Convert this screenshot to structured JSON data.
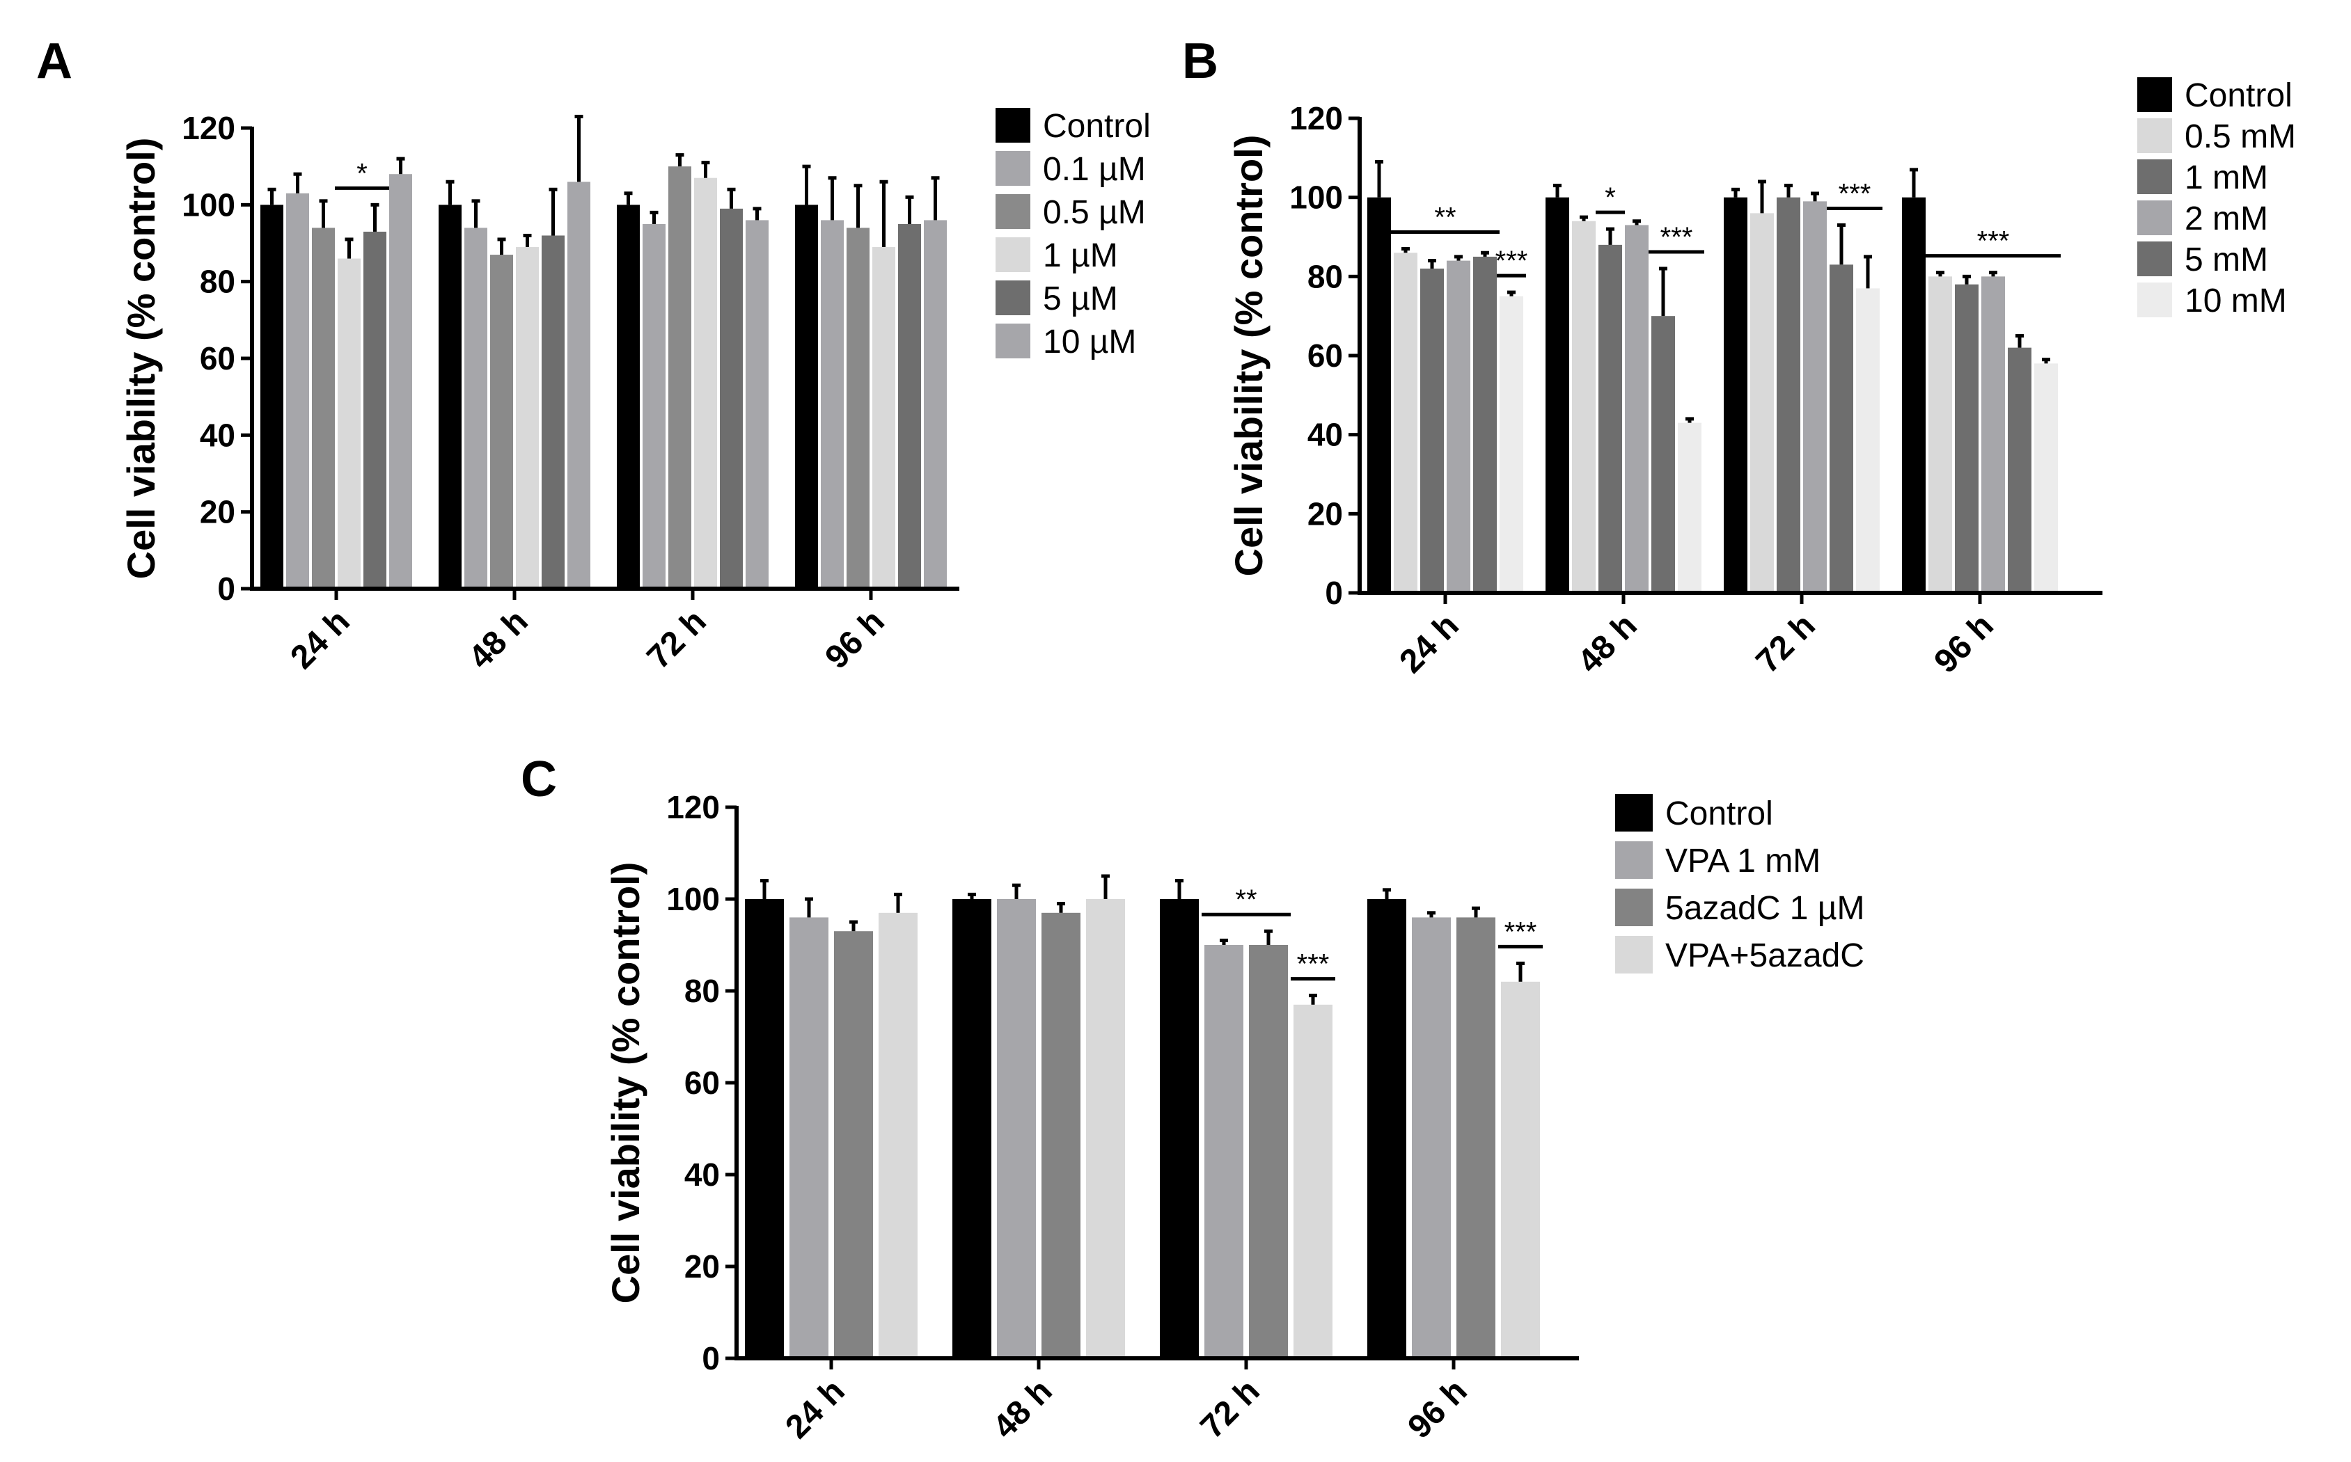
{
  "chart_data": [
    {
      "panel": "A",
      "type": "bar",
      "title": "",
      "xlabel": "",
      "ylabel": "Cell viability (% control)",
      "ylim": [
        0,
        120
      ],
      "yticks": [
        "0",
        "20",
        "40",
        "60",
        "80",
        "100",
        "120"
      ],
      "categories": [
        "24 h",
        "48 h",
        "72 h",
        "96 h"
      ],
      "legend_position": "right",
      "series": [
        {
          "name": "Control",
          "color": "#000000",
          "values": [
            100,
            100,
            100,
            100
          ],
          "errors": [
            4,
            6,
            3,
            10
          ]
        },
        {
          "name": "0.1 µM",
          "color": "#a6a6aa",
          "values": [
            103,
            94,
            95,
            96
          ],
          "errors": [
            5,
            7,
            3,
            11
          ]
        },
        {
          "name": "0.5 µM",
          "color": "#8a8a8a",
          "values": [
            94,
            87,
            110,
            94
          ],
          "errors": [
            7,
            4,
            3,
            11
          ]
        },
        {
          "name": "1 µM",
          "color": "#d9d9d9",
          "values": [
            86,
            89,
            107,
            89
          ],
          "errors": [
            5,
            3,
            4,
            17
          ]
        },
        {
          "name": "5 µM",
          "color": "#6e6e6e",
          "values": [
            93,
            92,
            99,
            95
          ],
          "errors": [
            7,
            12,
            5,
            7
          ]
        },
        {
          "name": "10 µM",
          "color": "#a6a6aa",
          "values": [
            108,
            106,
            96,
            96
          ],
          "errors": [
            4,
            17,
            3,
            11
          ]
        }
      ],
      "annotations": [
        {
          "text": "*",
          "category": 0,
          "from_series": 3,
          "to_series": 4
        }
      ]
    },
    {
      "panel": "B",
      "type": "bar",
      "title": "",
      "xlabel": "",
      "ylabel": "Cell viability (% control)",
      "ylim": [
        0,
        120
      ],
      "yticks": [
        "0",
        "20",
        "40",
        "60",
        "80",
        "100",
        "120"
      ],
      "categories": [
        "24 h",
        "48 h",
        "72 h",
        "96 h"
      ],
      "legend_position": "right",
      "series": [
        {
          "name": "Control",
          "color": "#000000",
          "values": [
            100,
            100,
            100,
            100
          ],
          "errors": [
            9,
            3,
            2,
            7
          ]
        },
        {
          "name": "0.5 mM",
          "color": "#d9d9d9",
          "values": [
            86,
            94,
            96,
            80
          ],
          "errors": [
            1,
            1,
            8,
            1
          ]
        },
        {
          "name": "1 mM",
          "color": "#6e6e6e",
          "values": [
            82,
            88,
            100,
            78
          ],
          "errors": [
            2,
            4,
            3,
            2
          ]
        },
        {
          "name": "2 mM",
          "color": "#a6a6aa",
          "values": [
            84,
            93,
            99,
            80
          ],
          "errors": [
            1,
            1,
            2,
            1
          ]
        },
        {
          "name": "5 mM",
          "color": "#6e6e6e",
          "values": [
            85,
            70,
            83,
            62
          ],
          "errors": [
            1,
            12,
            10,
            3
          ]
        },
        {
          "name": "10 mM",
          "color": "#ececec",
          "values": [
            75,
            43,
            77,
            58
          ],
          "errors": [
            1,
            1,
            8,
            1
          ]
        }
      ],
      "annotations": [
        {
          "text": "**",
          "category": 0,
          "from_series": 1,
          "to_series": 4
        },
        {
          "text": "***",
          "category": 0,
          "from_series": 5,
          "to_series": 5
        },
        {
          "text": "*",
          "category": 1,
          "from_series": 2,
          "to_series": 2
        },
        {
          "text": "***",
          "category": 1,
          "from_series": 4,
          "to_series": 5
        },
        {
          "text": "***",
          "category": 2,
          "from_series": 4,
          "to_series": 5
        },
        {
          "text": "***",
          "category": 3,
          "from_series": 1,
          "to_series": 5
        }
      ]
    },
    {
      "panel": "C",
      "type": "bar",
      "title": "",
      "xlabel": "",
      "ylabel": "Cell viability (% control)",
      "ylim": [
        0,
        120
      ],
      "yticks": [
        "0",
        "20",
        "40",
        "60",
        "80",
        "100",
        "120"
      ],
      "categories": [
        "24 h",
        "48 h",
        "72 h",
        "96 h"
      ],
      "legend_position": "right",
      "series": [
        {
          "name": "Control",
          "color": "#000000",
          "values": [
            100,
            100,
            100,
            100
          ],
          "errors": [
            4,
            1,
            4,
            2
          ]
        },
        {
          "name": "VPA 1 mM",
          "color": "#a6a6aa",
          "values": [
            96,
            100,
            90,
            96
          ],
          "errors": [
            4,
            3,
            1,
            1
          ]
        },
        {
          "name": "5azadC 1 µM",
          "color": "#838383",
          "values": [
            93,
            97,
            90,
            96
          ],
          "errors": [
            2,
            2,
            3,
            2
          ]
        },
        {
          "name": "VPA+5azadC",
          "color": "#d9d9d9",
          "values": [
            97,
            100,
            77,
            82
          ],
          "errors": [
            4,
            5,
            2,
            4
          ]
        }
      ],
      "annotations": [
        {
          "text": "**",
          "category": 2,
          "from_series": 1,
          "to_series": 2
        },
        {
          "text": "***",
          "category": 2,
          "from_series": 3,
          "to_series": 3
        },
        {
          "text": "***",
          "category": 3,
          "from_series": 3,
          "to_series": 3
        }
      ]
    }
  ]
}
